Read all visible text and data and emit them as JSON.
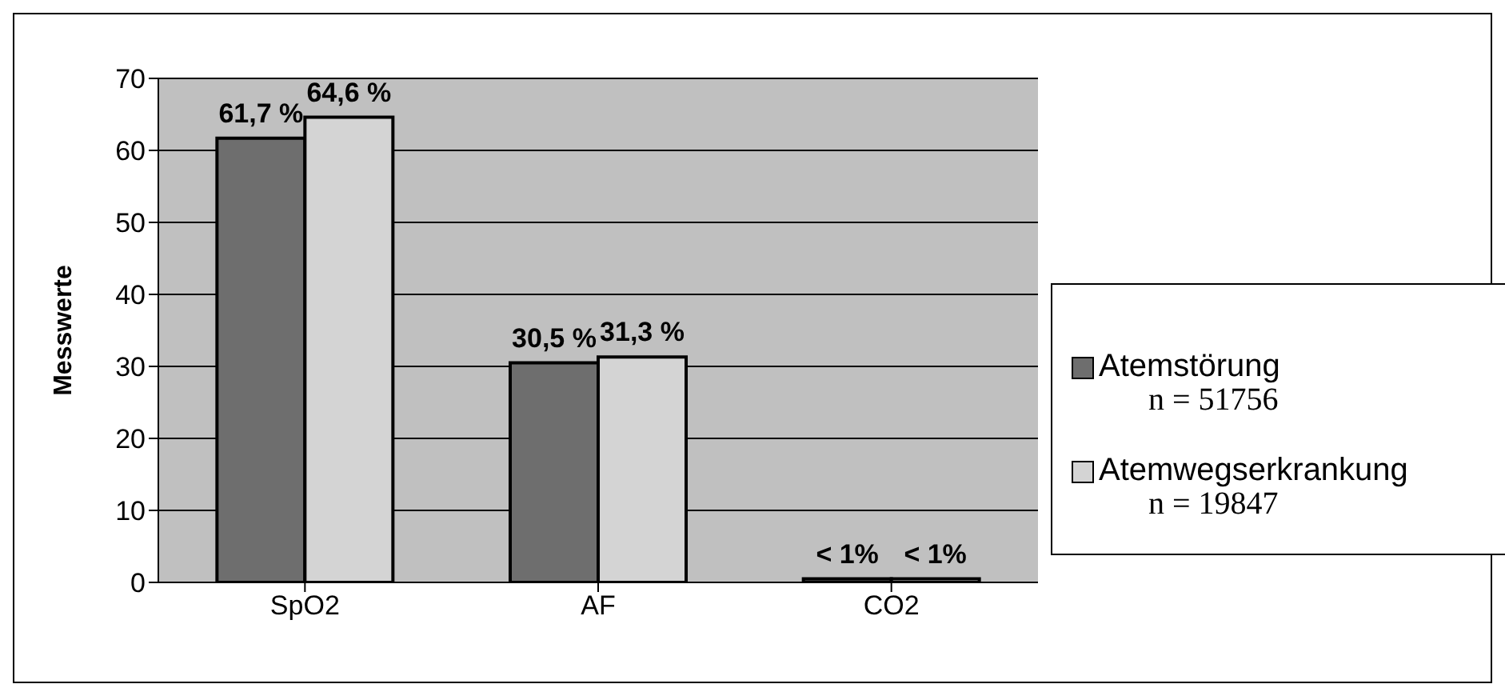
{
  "chart_data": {
    "type": "bar",
    "ylabel": "Messwerte",
    "categories": [
      "SpO2",
      "AF",
      "CO2"
    ],
    "series": [
      {
        "name": "Atemstörung",
        "color": "#6e6e6e",
        "values": [
          61.7,
          30.5,
          0.5
        ],
        "value_labels": [
          "61,7 %",
          "30,5 %",
          "< 1%"
        ]
      },
      {
        "name": "Atemwegserkrankung",
        "color": "#d4d4d4",
        "values": [
          64.6,
          31.3,
          0.5
        ],
        "value_labels": [
          "64,6 %",
          "31,3 %",
          "< 1%"
        ]
      }
    ],
    "annotations": [
      "n = 51756",
      "n = 19847"
    ],
    "ylim": [
      0,
      70
    ],
    "yticks": [
      0,
      10,
      20,
      30,
      40,
      50,
      60,
      70
    ],
    "grid": "y",
    "legend": "right"
  }
}
